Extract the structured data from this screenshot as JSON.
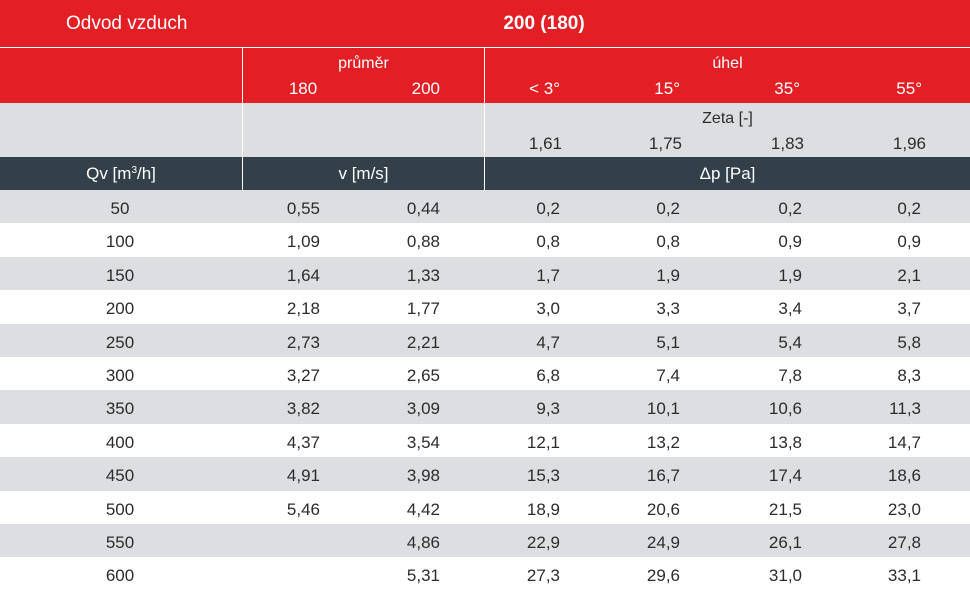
{
  "title_left": "Odvod vzduch",
  "title_center": "200 (180)",
  "group_diameter": "průměr",
  "group_angle": "úhel",
  "diameters": [
    "180",
    "200"
  ],
  "angles": [
    "< 3°",
    "15°",
    "35°",
    "55°"
  ],
  "zeta_label": "Zeta [-]",
  "zeta_values": [
    "1,61",
    "1,75",
    "1,83",
    "1,96"
  ],
  "header_qv": "Qv [m³/h]",
  "header_v": "v [m/s]",
  "header_dp": "Δp [Pa]",
  "rows": [
    {
      "qv": "50",
      "v180": "0,55",
      "v200": "0,44",
      "dp": [
        "0,2",
        "0,2",
        "0,2",
        "0,2"
      ]
    },
    {
      "qv": "100",
      "v180": "1,09",
      "v200": "0,88",
      "dp": [
        "0,8",
        "0,8",
        "0,9",
        "0,9"
      ]
    },
    {
      "qv": "150",
      "v180": "1,64",
      "v200": "1,33",
      "dp": [
        "1,7",
        "1,9",
        "1,9",
        "2,1"
      ]
    },
    {
      "qv": "200",
      "v180": "2,18",
      "v200": "1,77",
      "dp": [
        "3,0",
        "3,3",
        "3,4",
        "3,7"
      ]
    },
    {
      "qv": "250",
      "v180": "2,73",
      "v200": "2,21",
      "dp": [
        "4,7",
        "5,1",
        "5,4",
        "5,8"
      ]
    },
    {
      "qv": "300",
      "v180": "3,27",
      "v200": "2,65",
      "dp": [
        "6,8",
        "7,4",
        "7,8",
        "8,3"
      ]
    },
    {
      "qv": "350",
      "v180": "3,82",
      "v200": "3,09",
      "dp": [
        "9,3",
        "10,1",
        "10,6",
        "11,3"
      ]
    },
    {
      "qv": "400",
      "v180": "4,37",
      "v200": "3,54",
      "dp": [
        "12,1",
        "13,2",
        "13,8",
        "14,7"
      ]
    },
    {
      "qv": "450",
      "v180": "4,91",
      "v200": "3,98",
      "dp": [
        "15,3",
        "16,7",
        "17,4",
        "18,6"
      ]
    },
    {
      "qv": "500",
      "v180": "5,46",
      "v200": "4,42",
      "dp": [
        "18,9",
        "20,6",
        "21,5",
        "23,0"
      ]
    },
    {
      "qv": "550",
      "v180": "",
      "v200": "4,86",
      "dp": [
        "22,9",
        "24,9",
        "26,1",
        "27,8"
      ]
    },
    {
      "qv": "600",
      "v180": "",
      "v200": "5,31",
      "dp": [
        "27,3",
        "29,6",
        "31,0",
        "33,1"
      ]
    }
  ],
  "colors": {
    "header_red": "#e31e24",
    "header_dark": "#334049",
    "stripe_grey": "#dcdee1",
    "text": "#2c2c2c"
  }
}
